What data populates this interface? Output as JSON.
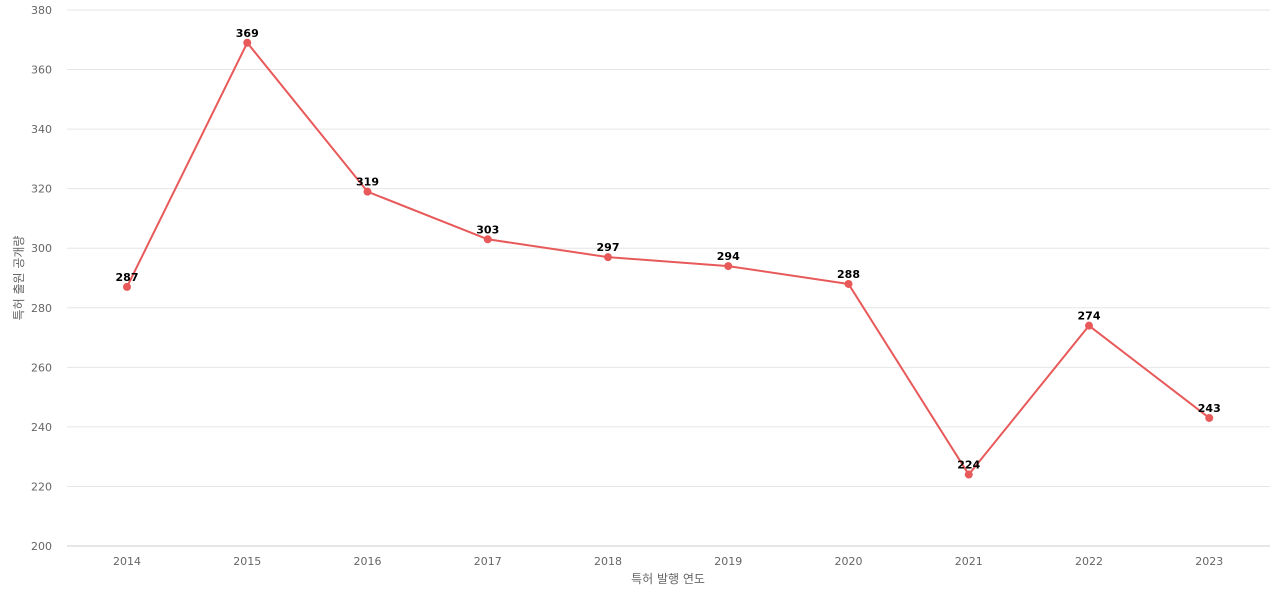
{
  "chart_data": {
    "type": "line",
    "xlabel": "특허 발행 연도",
    "ylabel": "특허 출원 공개량",
    "ylim": [
      200,
      380
    ],
    "yticks": [
      200,
      220,
      240,
      260,
      280,
      300,
      320,
      340,
      360,
      380
    ],
    "grid": true,
    "categories": [
      "2014",
      "2015",
      "2016",
      "2017",
      "2018",
      "2019",
      "2020",
      "2021",
      "2022",
      "2023"
    ],
    "series": [
      {
        "values": [
          287,
          369,
          319,
          303,
          297,
          294,
          288,
          224,
          274,
          243
        ],
        "color": "#e8595a"
      }
    ],
    "data_labels": true
  }
}
